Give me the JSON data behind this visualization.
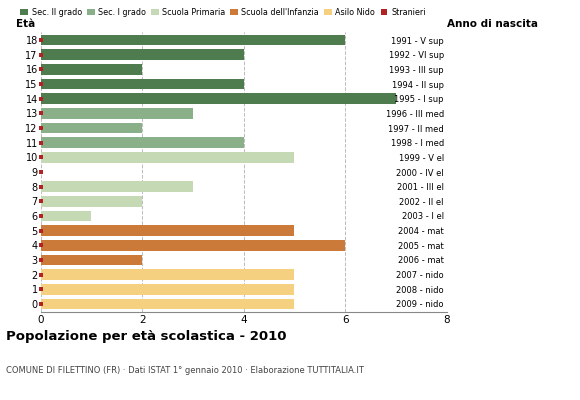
{
  "ages": [
    18,
    17,
    16,
    15,
    14,
    13,
    12,
    11,
    10,
    9,
    8,
    7,
    6,
    5,
    4,
    3,
    2,
    1,
    0
  ],
  "values": [
    6,
    4,
    2,
    4,
    7,
    3,
    2,
    4,
    5,
    0,
    3,
    2,
    1,
    5,
    6,
    2,
    5,
    5,
    5
  ],
  "colors": [
    "#4e7c4e",
    "#4e7c4e",
    "#4e7c4e",
    "#4e7c4e",
    "#4e7c4e",
    "#8ab08a",
    "#8ab08a",
    "#8ab08a",
    "#c5d9b5",
    "#c5d9b5",
    "#c5d9b5",
    "#c5d9b5",
    "#c5d9b5",
    "#cc7a3a",
    "#cc7a3a",
    "#cc7a3a",
    "#f5d080",
    "#f5d080",
    "#f5d080"
  ],
  "anno_nascita": [
    "1991 - V sup",
    "1992 - VI sup",
    "1993 - III sup",
    "1994 - II sup",
    "1995 - I sup",
    "1996 - III med",
    "1997 - II med",
    "1998 - I med",
    "1999 - V el",
    "2000 - IV el",
    "2001 - III el",
    "2002 - II el",
    "2003 - I el",
    "2004 - mat",
    "2005 - mat",
    "2006 - mat",
    "2007 - nido",
    "2008 - nido",
    "2009 - nido"
  ],
  "legend_labels": [
    "Sec. II grado",
    "Sec. I grado",
    "Scuola Primaria",
    "Scuola dell'Infanzia",
    "Asilo Nido",
    "Stranieri"
  ],
  "legend_colors": [
    "#4e7c4e",
    "#8ab08a",
    "#c5d9b5",
    "#cc7a3a",
    "#f5d080",
    "#b22222"
  ],
  "stranieri_color": "#b22222",
  "title": "Popolazione per età scolastica - 2010",
  "subtitle": "COMUNE DI FILETTINO (FR) · Dati ISTAT 1° gennaio 2010 · Elaborazione TUTTITALIA.IT",
  "eta_label": "Età",
  "anno_label": "Anno di nascita",
  "xlim": [
    0,
    8
  ],
  "xticks": [
    0,
    2,
    4,
    6,
    8
  ],
  "bg_color": "#ffffff",
  "grid_color": "#bbbbbb"
}
